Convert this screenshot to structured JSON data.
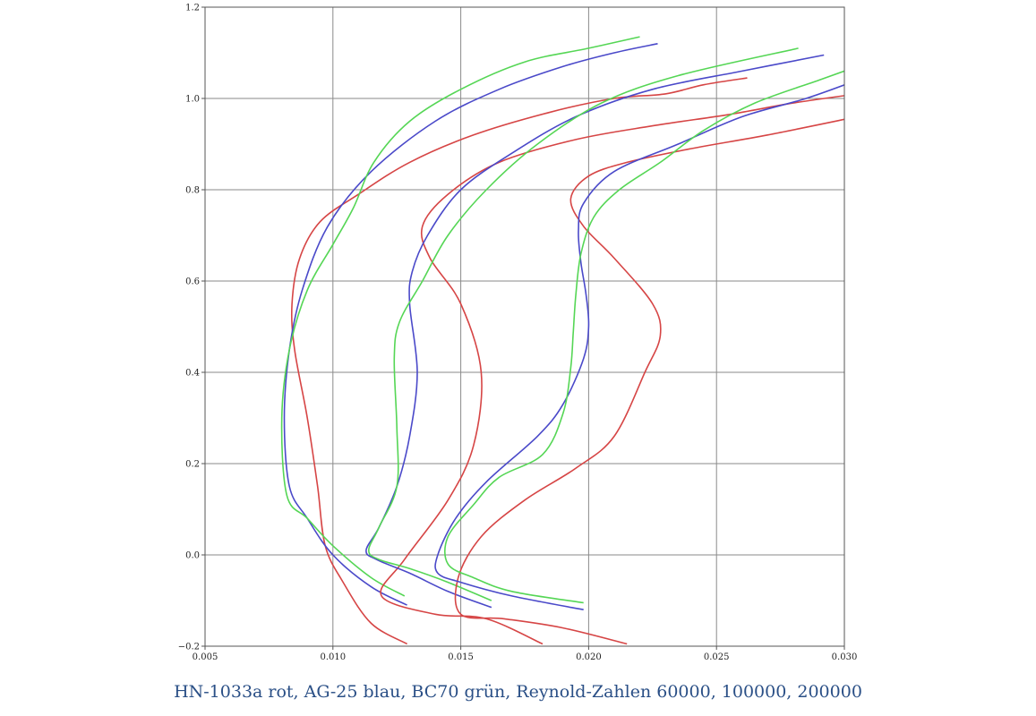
{
  "caption": "HN-1033a rot, AG-25 blau, BC70 grün, Reynold-Zahlen 60000, 100000, 200000",
  "chart_data": {
    "type": "line",
    "title": "",
    "xlabel": "",
    "ylabel": "",
    "xlim": [
      0.005,
      0.03
    ],
    "ylim": [
      -0.2,
      1.2
    ],
    "grid": true,
    "x_ticks": [
      0.005,
      0.01,
      0.015,
      0.02,
      0.025,
      0.03
    ],
    "x_tick_labels": [
      "0.005",
      "0.010",
      "0.015",
      "0.020",
      "0.025",
      "0.030"
    ],
    "y_ticks": [
      -0.2,
      0.0,
      0.2,
      0.4,
      0.6,
      0.8,
      1.0,
      1.2
    ],
    "y_tick_labels": [
      "−0.2",
      "0.0",
      "0.2",
      "0.4",
      "0.6",
      "0.8",
      "1.0",
      "1.2"
    ],
    "series": [
      {
        "color": "#d64545",
        "points": [
          [
            0.0129,
            -0.195
          ],
          [
            0.0115,
            -0.15
          ],
          [
            0.0104,
            -0.06
          ],
          [
            0.0097,
            0.02
          ],
          [
            0.0094,
            0.15
          ],
          [
            0.009,
            0.3
          ],
          [
            0.0085,
            0.45
          ],
          [
            0.0084,
            0.55
          ],
          [
            0.0087,
            0.65
          ],
          [
            0.0095,
            0.73
          ],
          [
            0.011,
            0.79
          ],
          [
            0.013,
            0.86
          ],
          [
            0.0155,
            0.92
          ],
          [
            0.0185,
            0.97
          ],
          [
            0.021,
            1.0
          ],
          [
            0.023,
            1.01
          ],
          [
            0.0245,
            1.03
          ],
          [
            0.0262,
            1.045
          ]
        ]
      },
      {
        "color": "#4a49c9",
        "points": [
          [
            0.0129,
            -0.11
          ],
          [
            0.0115,
            -0.07
          ],
          [
            0.01,
            0.0
          ],
          [
            0.009,
            0.08
          ],
          [
            0.0083,
            0.15
          ],
          [
            0.0081,
            0.3
          ],
          [
            0.0083,
            0.45
          ],
          [
            0.0088,
            0.58
          ],
          [
            0.0098,
            0.72
          ],
          [
            0.0115,
            0.84
          ],
          [
            0.014,
            0.95
          ],
          [
            0.0165,
            1.02
          ],
          [
            0.019,
            1.07
          ],
          [
            0.021,
            1.1
          ],
          [
            0.0227,
            1.12
          ]
        ]
      },
      {
        "color": "#55d655",
        "points": [
          [
            0.0128,
            -0.09
          ],
          [
            0.0115,
            -0.05
          ],
          [
            0.01,
            0.02
          ],
          [
            0.009,
            0.08
          ],
          [
            0.0082,
            0.13
          ],
          [
            0.008,
            0.3
          ],
          [
            0.0083,
            0.45
          ],
          [
            0.009,
            0.58
          ],
          [
            0.01,
            0.68
          ],
          [
            0.0108,
            0.76
          ],
          [
            0.0116,
            0.86
          ],
          [
            0.013,
            0.95
          ],
          [
            0.015,
            1.02
          ],
          [
            0.0175,
            1.08
          ],
          [
            0.02,
            1.11
          ],
          [
            0.022,
            1.135
          ]
        ]
      },
      {
        "color": "#d64545",
        "points": [
          [
            0.0182,
            -0.195
          ],
          [
            0.016,
            -0.14
          ],
          [
            0.014,
            -0.13
          ],
          [
            0.0119,
            -0.09
          ],
          [
            0.0128,
            -0.01
          ],
          [
            0.0145,
            0.12
          ],
          [
            0.0155,
            0.24
          ],
          [
            0.0158,
            0.4
          ],
          [
            0.015,
            0.55
          ],
          [
            0.0138,
            0.65
          ],
          [
            0.0135,
            0.72
          ],
          [
            0.0145,
            0.79
          ],
          [
            0.0165,
            0.86
          ],
          [
            0.0195,
            0.91
          ],
          [
            0.0225,
            0.94
          ],
          [
            0.0255,
            0.965
          ],
          [
            0.028,
            0.99
          ],
          [
            0.0305,
            1.01
          ]
        ]
      },
      {
        "color": "#4a49c9",
        "points": [
          [
            0.0162,
            -0.115
          ],
          [
            0.0145,
            -0.08
          ],
          [
            0.013,
            -0.04
          ],
          [
            0.0117,
            -0.01
          ],
          [
            0.0113,
            0.01
          ],
          [
            0.0118,
            0.06
          ],
          [
            0.0125,
            0.15
          ],
          [
            0.013,
            0.26
          ],
          [
            0.0133,
            0.4
          ],
          [
            0.013,
            0.55
          ],
          [
            0.0131,
            0.62
          ],
          [
            0.0137,
            0.7
          ],
          [
            0.015,
            0.8
          ],
          [
            0.017,
            0.88
          ],
          [
            0.0195,
            0.96
          ],
          [
            0.0225,
            1.02
          ],
          [
            0.026,
            1.06
          ],
          [
            0.0292,
            1.095
          ]
        ]
      },
      {
        "color": "#55d655",
        "points": [
          [
            0.0162,
            -0.1
          ],
          [
            0.0145,
            -0.06
          ],
          [
            0.013,
            -0.03
          ],
          [
            0.0118,
            -0.01
          ],
          [
            0.0114,
            0.01
          ],
          [
            0.0118,
            0.06
          ],
          [
            0.0125,
            0.15
          ],
          [
            0.0125,
            0.28
          ],
          [
            0.0124,
            0.43
          ],
          [
            0.0126,
            0.51
          ],
          [
            0.0135,
            0.6
          ],
          [
            0.0145,
            0.7
          ],
          [
            0.016,
            0.8
          ],
          [
            0.018,
            0.9
          ],
          [
            0.0205,
            0.99
          ],
          [
            0.0235,
            1.05
          ],
          [
            0.0282,
            1.11
          ]
        ]
      },
      {
        "color": "#d64545",
        "points": [
          [
            0.0215,
            -0.195
          ],
          [
            0.019,
            -0.16
          ],
          [
            0.0167,
            -0.14
          ],
          [
            0.015,
            -0.13
          ],
          [
            0.0149,
            -0.05
          ],
          [
            0.0158,
            0.04
          ],
          [
            0.0175,
            0.12
          ],
          [
            0.0195,
            0.19
          ],
          [
            0.021,
            0.26
          ],
          [
            0.0222,
            0.4
          ],
          [
            0.0228,
            0.48
          ],
          [
            0.0225,
            0.55
          ],
          [
            0.021,
            0.65
          ],
          [
            0.0198,
            0.72
          ],
          [
            0.0193,
            0.78
          ],
          [
            0.02,
            0.83
          ],
          [
            0.0215,
            0.86
          ],
          [
            0.024,
            0.89
          ],
          [
            0.027,
            0.92
          ],
          [
            0.0305,
            0.96
          ]
        ]
      },
      {
        "color": "#4a49c9",
        "points": [
          [
            0.0198,
            -0.12
          ],
          [
            0.017,
            -0.09
          ],
          [
            0.015,
            -0.06
          ],
          [
            0.0141,
            -0.04
          ],
          [
            0.0141,
            0.0
          ],
          [
            0.0148,
            0.08
          ],
          [
            0.016,
            0.16
          ],
          [
            0.018,
            0.26
          ],
          [
            0.019,
            0.33
          ],
          [
            0.0198,
            0.43
          ],
          [
            0.02,
            0.5
          ],
          [
            0.0199,
            0.57
          ],
          [
            0.0197,
            0.64
          ],
          [
            0.0196,
            0.71
          ],
          [
            0.0198,
            0.77
          ],
          [
            0.021,
            0.84
          ],
          [
            0.0235,
            0.9
          ],
          [
            0.026,
            0.96
          ],
          [
            0.0285,
            1.0
          ],
          [
            0.0305,
            1.04
          ]
        ]
      },
      {
        "color": "#55d655",
        "points": [
          [
            0.0198,
            -0.105
          ],
          [
            0.017,
            -0.08
          ],
          [
            0.0155,
            -0.05
          ],
          [
            0.0145,
            -0.02
          ],
          [
            0.0145,
            0.04
          ],
          [
            0.0155,
            0.11
          ],
          [
            0.0165,
            0.17
          ],
          [
            0.0182,
            0.22
          ],
          [
            0.019,
            0.31
          ],
          [
            0.0193,
            0.41
          ],
          [
            0.0194,
            0.49
          ],
          [
            0.0195,
            0.57
          ],
          [
            0.0197,
            0.66
          ],
          [
            0.0202,
            0.74
          ],
          [
            0.0212,
            0.8
          ],
          [
            0.0228,
            0.86
          ],
          [
            0.0245,
            0.93
          ],
          [
            0.0265,
            0.99
          ],
          [
            0.029,
            1.04
          ],
          [
            0.0305,
            1.07
          ]
        ]
      }
    ]
  }
}
